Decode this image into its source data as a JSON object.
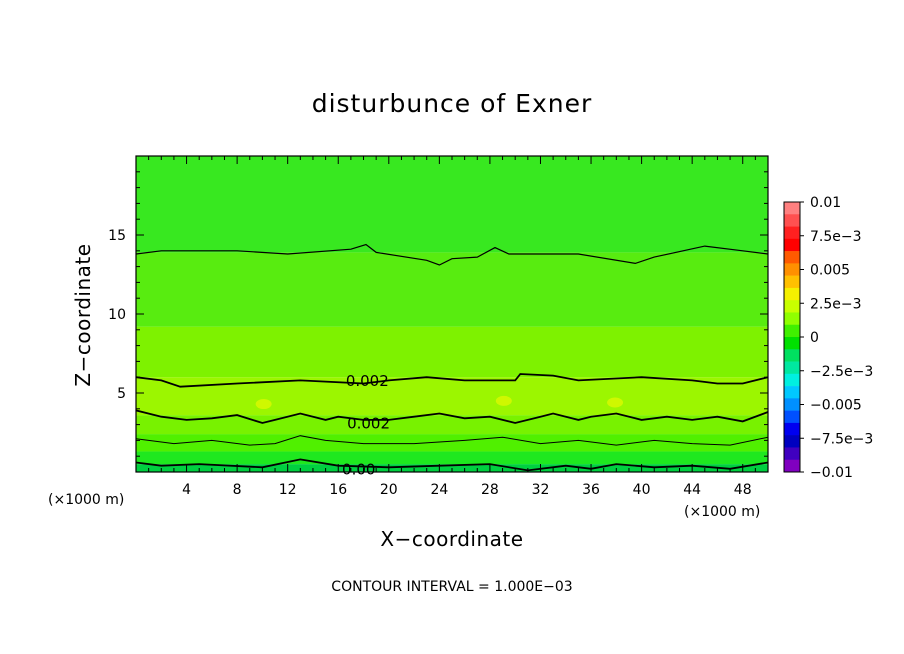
{
  "chart_data": {
    "type": "heatmap",
    "title": "disturbunce of Exner",
    "xlabel": "X−coordinate",
    "ylabel": "Z−coordinate",
    "x_unit": "(×1000 m)",
    "xlim": [
      0,
      50
    ],
    "ylim": [
      0,
      20
    ],
    "x_ticks": [
      4,
      8,
      12,
      16,
      20,
      24,
      28,
      32,
      36,
      40,
      44,
      48
    ],
    "y_ticks": [
      5,
      10,
      15
    ],
    "x_tick_labels": [
      "4",
      "8",
      "12",
      "16",
      "20",
      "24",
      "28",
      "32",
      "36",
      "40",
      "44",
      "48"
    ],
    "y_tick_labels": [
      "5",
      "10",
      "15"
    ],
    "colorbar": {
      "range": [
        -0.01,
        0.01
      ],
      "labels": [
        "0.01",
        "7.5e−3",
        "0.005",
        "2.5e−3",
        "0",
        "−2.5e−3",
        "−0.005",
        "−7.5e−3",
        "−0.01"
      ],
      "colors": [
        "#ff8080",
        "#ff5050",
        "#ff2020",
        "#ff0000",
        "#ff5a00",
        "#ff9000",
        "#ffc000",
        "#f5f000",
        "#c8ff00",
        "#90ff00",
        "#40f000",
        "#00e000",
        "#00e060",
        "#00e8a0",
        "#00f0e0",
        "#00c8ff",
        "#0090ff",
        "#0050ff",
        "#0000f0",
        "#0000c0",
        "#4000c0",
        "#8000c0"
      ]
    },
    "contour_labels": [
      "0.002",
      "0.002",
      "0.00"
    ],
    "contour_interval_text": "CONTOUR INTERVAL = 1.000E−03",
    "bands": [
      {
        "z_bottom": 0.0,
        "z_top": 0.5,
        "color": "#00d040"
      },
      {
        "z_bottom": 0.5,
        "z_top": 1.3,
        "color": "#1fe81f"
      },
      {
        "z_bottom": 1.3,
        "z_top": 2.4,
        "color": "#50f000"
      },
      {
        "z_bottom": 2.4,
        "z_top": 3.6,
        "color": "#78f200"
      },
      {
        "z_bottom": 3.6,
        "z_top": 6.0,
        "color": "#9cf600"
      },
      {
        "z_bottom": 6.0,
        "z_top": 9.2,
        "color": "#7ef200"
      },
      {
        "z_bottom": 9.2,
        "z_top": 13.9,
        "color": "#58ec10"
      },
      {
        "z_bottom": 13.9,
        "z_top": 20.0,
        "color": "#38e820"
      }
    ],
    "contours": [
      {
        "name": "contour-z14",
        "width": 1.2,
        "points": [
          [
            0,
            13.8
          ],
          [
            2,
            14.0
          ],
          [
            8,
            14.0
          ],
          [
            12,
            13.8
          ],
          [
            17,
            14.1
          ],
          [
            18.2,
            14.4
          ],
          [
            19,
            13.9
          ],
          [
            23,
            13.4
          ],
          [
            24,
            13.1
          ],
          [
            25,
            13.5
          ],
          [
            27,
            13.6
          ],
          [
            28.4,
            14.2
          ],
          [
            29.5,
            13.8
          ],
          [
            35,
            13.8
          ],
          [
            39.5,
            13.2
          ],
          [
            41,
            13.6
          ],
          [
            45,
            14.3
          ],
          [
            48,
            14.0
          ],
          [
            50,
            13.8
          ]
        ]
      },
      {
        "name": "contour-z6",
        "width": 1.8,
        "points": [
          [
            0,
            6.0
          ],
          [
            2,
            5.8
          ],
          [
            3.5,
            5.4
          ],
          [
            8,
            5.6
          ],
          [
            13,
            5.8
          ],
          [
            18,
            5.6
          ],
          [
            20,
            5.8
          ],
          [
            23,
            6.0
          ],
          [
            26,
            5.8
          ],
          [
            30,
            5.8
          ],
          [
            30.4,
            6.2
          ],
          [
            33,
            6.1
          ],
          [
            35,
            5.8
          ],
          [
            40,
            6.0
          ],
          [
            44,
            5.8
          ],
          [
            46,
            5.6
          ],
          [
            48,
            5.6
          ],
          [
            50,
            6.0
          ]
        ]
      },
      {
        "name": "contour-z35",
        "width": 1.8,
        "points": [
          [
            0,
            3.9
          ],
          [
            2,
            3.5
          ],
          [
            4,
            3.3
          ],
          [
            6,
            3.4
          ],
          [
            8,
            3.6
          ],
          [
            10,
            3.1
          ],
          [
            11,
            3.3
          ],
          [
            13,
            3.7
          ],
          [
            15,
            3.3
          ],
          [
            16,
            3.5
          ],
          [
            18,
            3.3
          ],
          [
            20,
            3.3
          ],
          [
            22,
            3.5
          ],
          [
            24,
            3.7
          ],
          [
            26,
            3.4
          ],
          [
            28,
            3.5
          ],
          [
            30,
            3.1
          ],
          [
            32,
            3.5
          ],
          [
            33,
            3.7
          ],
          [
            35,
            3.3
          ],
          [
            36,
            3.5
          ],
          [
            38,
            3.7
          ],
          [
            40,
            3.3
          ],
          [
            42,
            3.5
          ],
          [
            44,
            3.3
          ],
          [
            46,
            3.5
          ],
          [
            48,
            3.2
          ],
          [
            50,
            3.8
          ]
        ]
      },
      {
        "name": "contour-z2",
        "width": 1.0,
        "points": [
          [
            0,
            2.1
          ],
          [
            3,
            1.8
          ],
          [
            6,
            2.0
          ],
          [
            9,
            1.7
          ],
          [
            11,
            1.8
          ],
          [
            13,
            2.3
          ],
          [
            15,
            2.0
          ],
          [
            18,
            1.8
          ],
          [
            22,
            1.8
          ],
          [
            26,
            2.0
          ],
          [
            29,
            2.2
          ],
          [
            32,
            1.8
          ],
          [
            35,
            2.0
          ],
          [
            38,
            1.7
          ],
          [
            41,
            2.0
          ],
          [
            44,
            1.8
          ],
          [
            47,
            1.7
          ],
          [
            50,
            2.2
          ]
        ]
      },
      {
        "name": "contour-z05",
        "width": 1.8,
        "points": [
          [
            0,
            0.6
          ],
          [
            2,
            0.4
          ],
          [
            5,
            0.5
          ],
          [
            10,
            0.3
          ],
          [
            13,
            0.8
          ],
          [
            16,
            0.4
          ],
          [
            20,
            0.3
          ],
          [
            24,
            0.4
          ],
          [
            28,
            0.5
          ],
          [
            31,
            0.1
          ],
          [
            34,
            0.4
          ],
          [
            36,
            0.2
          ],
          [
            38,
            0.5
          ],
          [
            41,
            0.3
          ],
          [
            44,
            0.4
          ],
          [
            47,
            0.2
          ],
          [
            50,
            0.6
          ]
        ]
      }
    ],
    "contour_label_positions": [
      [
        16.6,
        5.7
      ],
      [
        16.7,
        3.0
      ],
      [
        16.3,
        0.1
      ]
    ],
    "bright_spots": [
      [
        10.1,
        4.3
      ],
      [
        29.1,
        4.5
      ],
      [
        37.9,
        4.4
      ]
    ],
    "grid": false,
    "legend": "right"
  }
}
